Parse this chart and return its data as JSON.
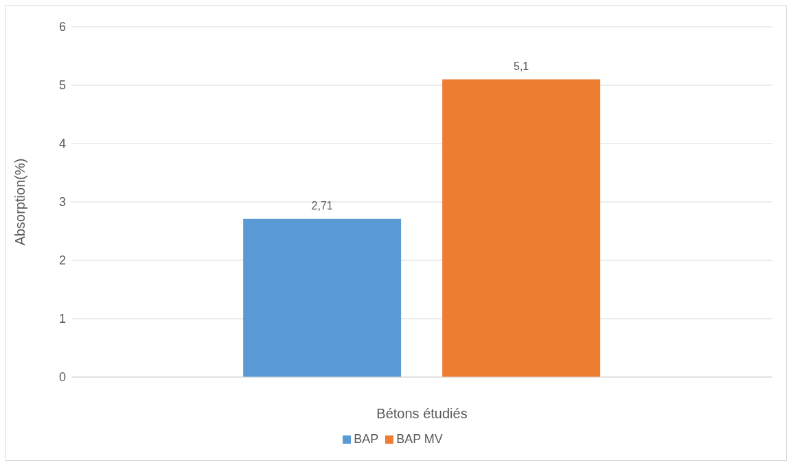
{
  "chart_data": {
    "type": "bar",
    "xlabel": "Bétons étudiés",
    "ylabel": "Absorption(%)",
    "categories": [
      null
    ],
    "series": [
      {
        "name": "BAP",
        "color": "#5b9bd5",
        "values": [
          2.71
        ],
        "value_labels": [
          "2,71"
        ]
      },
      {
        "name": "BAP MV",
        "color": "#ed7d31",
        "values": [
          5.1
        ],
        "value_labels": [
          "5,1"
        ]
      }
    ],
    "ylim": [
      0,
      6
    ],
    "yticks": [
      0,
      1,
      2,
      3,
      4,
      5,
      6
    ],
    "grid": "y",
    "legend": "bottom"
  }
}
